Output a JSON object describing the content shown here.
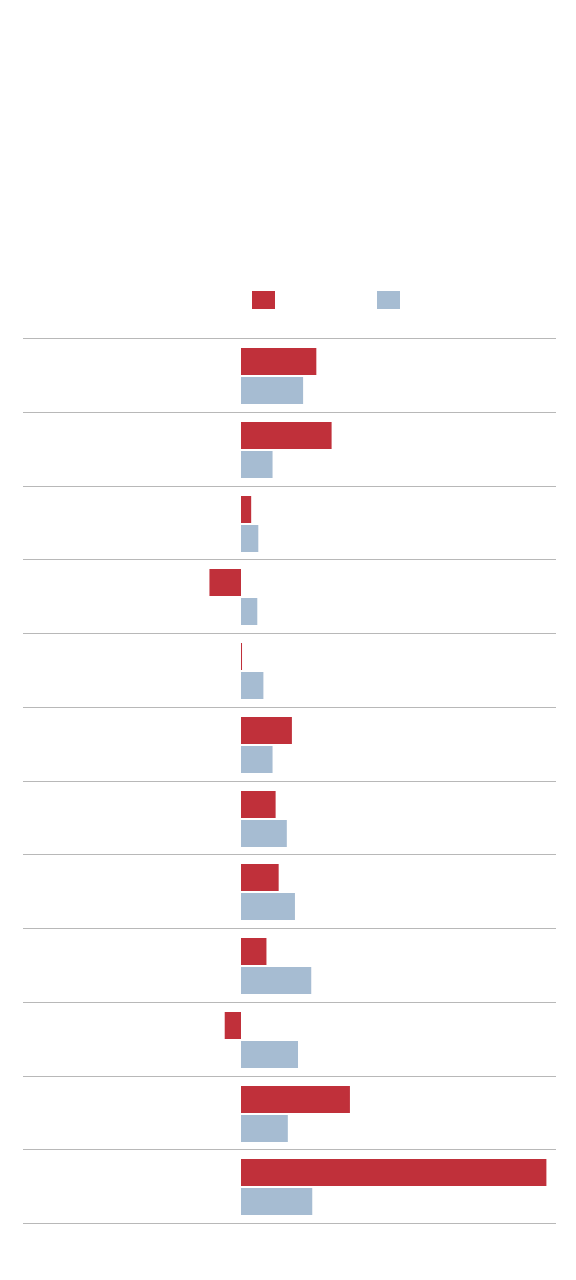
{
  "chart_data": {
    "type": "bar",
    "orientation": "horizontal",
    "title": "",
    "xlabel": "",
    "ylabel": "",
    "categories": [
      "",
      "",
      "",
      "",
      "",
      "",
      "",
      "",
      "",
      "",
      "",
      ""
    ],
    "series": [
      {
        "values": [
          7.4,
          8.9,
          1.0,
          -3.1,
          0.1,
          5.0,
          3.4,
          3.7,
          2.5,
          -1.6,
          10.7,
          30.0
        ]
      },
      {
        "values": [
          6.1,
          3.1,
          1.7,
          1.6,
          2.2,
          3.1,
          4.5,
          5.3,
          6.9,
          5.6,
          4.6,
          7.0
        ]
      }
    ],
    "colors": [
      "#c0303a",
      "#a6bcd2"
    ],
    "legend": "top",
    "grid": false,
    "xlim": [
      -4,
      31
    ]
  }
}
